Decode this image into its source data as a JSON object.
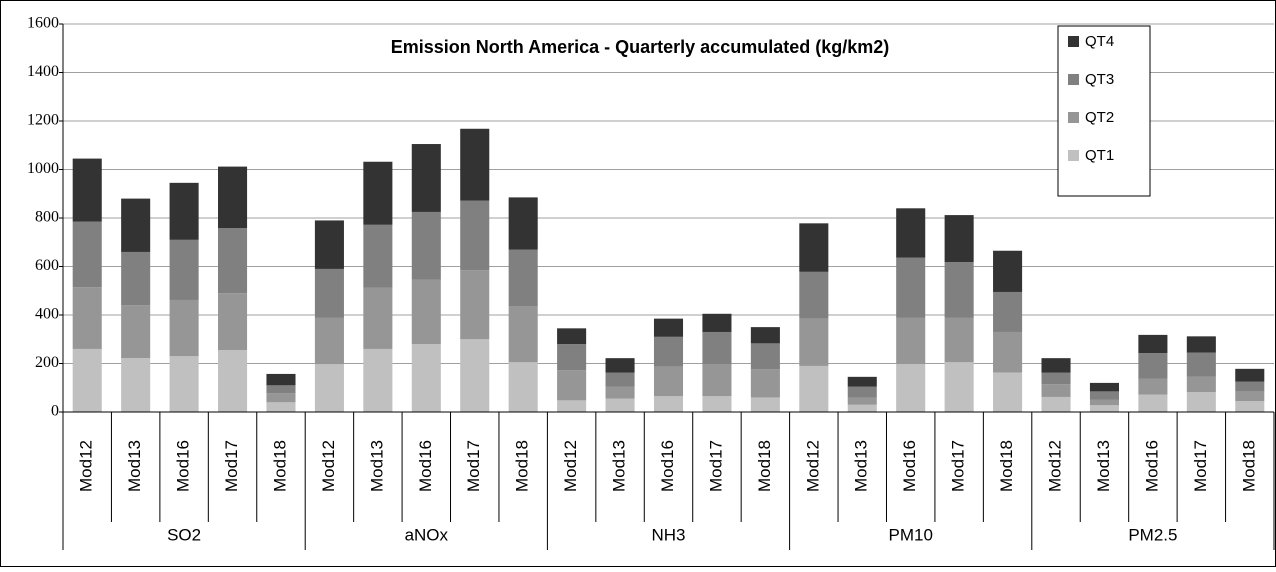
{
  "chart_data": {
    "type": "stacked_bar",
    "title": "Emission North America - Quarterly accumulated (kg/km2)",
    "categories": [
      "Mod12",
      "Mod13",
      "Mod16",
      "Mod17",
      "Mod18",
      "Mod12",
      "Mod13",
      "Mod16",
      "Mod17",
      "Mod18",
      "Mod12",
      "Mod13",
      "Mod16",
      "Mod17",
      "Mod18",
      "Mod12",
      "Mod13",
      "Mod16",
      "Mod17",
      "Mod18",
      "Mod12",
      "Mod13",
      "Mod16",
      "Mod17",
      "Mod18"
    ],
    "groups": [
      "SO2",
      "aNOx",
      "NH3",
      "PM10",
      "PM2.5"
    ],
    "series": [
      {
        "name": "QT1",
        "color": "#c0c0c0",
        "values": [
          260,
          222,
          230,
          255,
          40,
          197,
          260,
          280,
          300,
          205,
          48,
          55,
          65,
          65,
          60,
          190,
          30,
          198,
          205,
          163,
          62,
          28,
          72,
          82,
          45
        ]
      },
      {
        "name": "QT2",
        "color": "#969696",
        "values": [
          255,
          218,
          232,
          235,
          38,
          191,
          252,
          265,
          285,
          232,
          124,
          50,
          122,
          133,
          117,
          195,
          30,
          190,
          183,
          167,
          53,
          22,
          66,
          63,
          40
        ]
      },
      {
        "name": "QT3",
        "color": "#808080",
        "values": [
          270,
          220,
          248,
          268,
          32,
          202,
          260,
          280,
          287,
          233,
          108,
          57,
          123,
          132,
          106,
          193,
          45,
          249,
          230,
          165,
          47,
          35,
          105,
          100,
          40
        ]
      },
      {
        "name": "QT4",
        "color": "#333333",
        "values": [
          260,
          220,
          235,
          254,
          47,
          200,
          260,
          280,
          296,
          215,
          65,
          60,
          75,
          75,
          67,
          200,
          40,
          203,
          194,
          170,
          60,
          35,
          75,
          67,
          53
        ]
      }
    ],
    "ylim": [
      0,
      1600
    ],
    "yticks": [
      0,
      200,
      400,
      600,
      800,
      1000,
      1200,
      1400,
      1600
    ],
    "grid": true,
    "legend": "top-right"
  }
}
